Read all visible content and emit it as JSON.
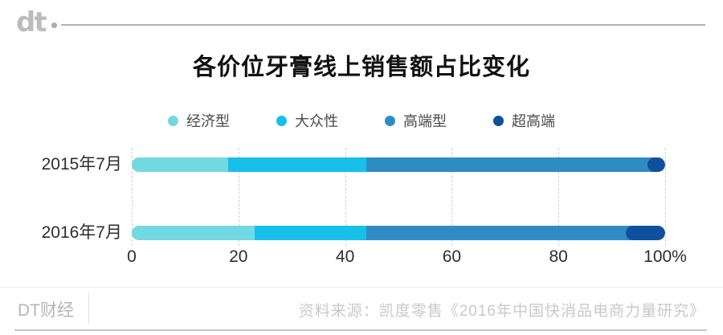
{
  "brand": {
    "logo_text": "dt"
  },
  "title": "各价位牙膏线上销售额占比变化",
  "chart_data": {
    "type": "bar",
    "orientation": "horizontal",
    "stacked": true,
    "unit": "%",
    "title": "各价位牙膏线上销售额占比变化",
    "categories": [
      "2015年7月",
      "2016年7月"
    ],
    "series": [
      {
        "name": "经济型",
        "color": "#70d9e2",
        "values": [
          18,
          23
        ]
      },
      {
        "name": "大众性",
        "color": "#16c0e8",
        "values": [
          26,
          21
        ]
      },
      {
        "name": "高端型",
        "color": "#2f8cc3",
        "values": [
          54,
          50
        ]
      },
      {
        "name": "超高端",
        "color": "#0d509e",
        "values": [
          2,
          6
        ]
      }
    ],
    "xlim": [
      0,
      100
    ],
    "ticks": [
      {
        "label": "0",
        "value": 0
      },
      {
        "label": "20",
        "value": 20
      },
      {
        "label": "40",
        "value": 40
      },
      {
        "label": "60",
        "value": 60
      },
      {
        "label": "80",
        "value": 80
      },
      {
        "label": "100%",
        "value": 100
      }
    ],
    "grid": "vertical-dashed",
    "legend_position": "top"
  },
  "footer": {
    "brand": "DT财经",
    "source": "资料来源：凯度零售《2016年中国快消品电商力量研究》"
  },
  "colors": {
    "gridline": "#cbd1d6",
    "title_text": "#111111",
    "axis_text": "#2d2d2d",
    "legend_text": "#4b4b4b",
    "footer_text": "#c9c9c9",
    "brand_gray": "#b5b5b5"
  }
}
